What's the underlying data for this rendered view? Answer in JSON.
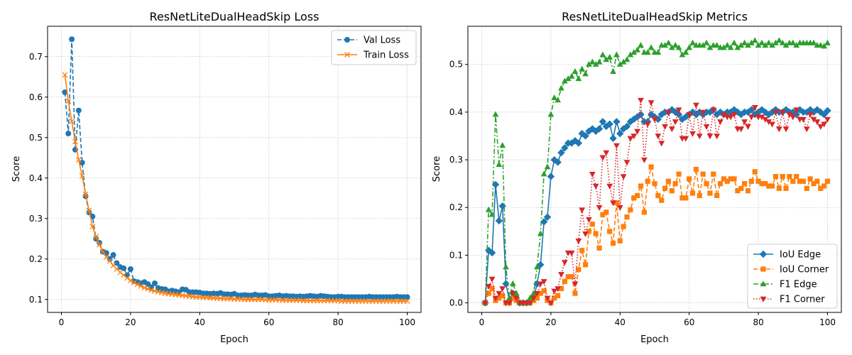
{
  "chart_data": [
    {
      "type": "line",
      "title": "ResNetLiteDualHeadSkip Loss",
      "xlabel": "Epoch",
      "ylabel": "Score",
      "xlim": [
        -4,
        104
      ],
      "ylim": [
        0.068,
        0.775
      ],
      "xticks": [
        0,
        20,
        40,
        60,
        80,
        100
      ],
      "yticks": [
        0.1,
        0.2,
        0.3,
        0.4,
        0.5,
        0.6,
        0.7
      ],
      "grid": true,
      "legend": "top-right",
      "x": [
        1,
        2,
        3,
        4,
        5,
        6,
        7,
        8,
        9,
        10,
        11,
        12,
        13,
        14,
        15,
        16,
        17,
        18,
        19,
        20,
        21,
        22,
        23,
        24,
        25,
        26,
        27,
        28,
        29,
        30,
        31,
        32,
        33,
        34,
        35,
        36,
        37,
        38,
        39,
        40,
        41,
        42,
        43,
        44,
        45,
        46,
        47,
        48,
        49,
        50,
        51,
        52,
        53,
        54,
        55,
        56,
        57,
        58,
        59,
        60,
        61,
        62,
        63,
        64,
        65,
        66,
        67,
        68,
        69,
        70,
        71,
        72,
        73,
        74,
        75,
        76,
        77,
        78,
        79,
        80,
        81,
        82,
        83,
        84,
        85,
        86,
        87,
        88,
        89,
        90,
        91,
        92,
        93,
        94,
        95,
        96,
        97,
        98,
        99,
        100
      ],
      "series": [
        {
          "name": "Val Loss",
          "color": "#1f77b4",
          "linestyle": "dashed",
          "marker": "circle",
          "values": [
            0.612,
            0.51,
            0.743,
            0.47,
            0.567,
            0.438,
            0.355,
            0.315,
            0.305,
            0.25,
            0.24,
            0.218,
            0.215,
            0.2,
            0.21,
            0.19,
            0.18,
            0.177,
            0.16,
            0.175,
            0.145,
            0.143,
            0.14,
            0.143,
            0.138,
            0.13,
            0.14,
            0.128,
            0.126,
            0.125,
            0.12,
            0.122,
            0.12,
            0.118,
            0.125,
            0.124,
            0.118,
            0.118,
            0.118,
            0.117,
            0.115,
            0.115,
            0.114,
            0.115,
            0.114,
            0.116,
            0.113,
            0.113,
            0.112,
            0.114,
            0.11,
            0.11,
            0.111,
            0.11,
            0.11,
            0.112,
            0.11,
            0.11,
            0.111,
            0.108,
            0.108,
            0.109,
            0.11,
            0.108,
            0.109,
            0.108,
            0.108,
            0.107,
            0.108,
            0.107,
            0.108,
            0.109,
            0.108,
            0.107,
            0.109,
            0.108,
            0.107,
            0.106,
            0.106,
            0.107,
            0.107,
            0.106,
            0.106,
            0.106,
            0.106,
            0.106,
            0.106,
            0.106,
            0.107,
            0.106,
            0.106,
            0.106,
            0.106,
            0.106,
            0.106,
            0.106,
            0.107,
            0.106,
            0.106,
            0.106
          ]
        },
        {
          "name": "Train Loss",
          "color": "#ff7f0e",
          "linestyle": "solid",
          "marker": "x",
          "values": [
            0.655,
            0.59,
            0.54,
            0.49,
            0.445,
            0.405,
            0.36,
            0.32,
            0.28,
            0.255,
            0.235,
            0.218,
            0.205,
            0.195,
            0.184,
            0.175,
            0.167,
            0.16,
            0.153,
            0.147,
            0.142,
            0.137,
            0.133,
            0.129,
            0.126,
            0.123,
            0.121,
            0.119,
            0.117,
            0.115,
            0.114,
            0.113,
            0.112,
            0.111,
            0.11,
            0.109,
            0.108,
            0.107,
            0.106,
            0.106,
            0.105,
            0.105,
            0.104,
            0.104,
            0.103,
            0.103,
            0.102,
            0.102,
            0.102,
            0.101,
            0.101,
            0.101,
            0.1,
            0.1,
            0.1,
            0.1,
            0.1,
            0.1,
            0.099,
            0.099,
            0.099,
            0.099,
            0.099,
            0.098,
            0.098,
            0.098,
            0.098,
            0.098,
            0.098,
            0.097,
            0.097,
            0.097,
            0.097,
            0.097,
            0.097,
            0.097,
            0.097,
            0.097,
            0.097,
            0.097,
            0.096,
            0.096,
            0.096,
            0.096,
            0.096,
            0.096,
            0.096,
            0.096,
            0.096,
            0.096,
            0.096,
            0.096,
            0.096,
            0.096,
            0.096,
            0.096,
            0.096,
            0.096,
            0.096,
            0.096
          ]
        }
      ]
    },
    {
      "type": "line",
      "title": "ResNetLiteDualHeadSkip Metrics",
      "xlabel": "Epoch",
      "ylabel": "Score",
      "xlim": [
        -4,
        104
      ],
      "ylim": [
        -0.02,
        0.58
      ],
      "xticks": [
        0,
        20,
        40,
        60,
        80,
        100
      ],
      "yticks": [
        0.0,
        0.1,
        0.2,
        0.3,
        0.4,
        0.5
      ],
      "grid": true,
      "legend": "bottom-right",
      "x": [
        1,
        2,
        3,
        4,
        5,
        6,
        7,
        8,
        9,
        10,
        11,
        12,
        13,
        14,
        15,
        16,
        17,
        18,
        19,
        20,
        21,
        22,
        23,
        24,
        25,
        26,
        27,
        28,
        29,
        30,
        31,
        32,
        33,
        34,
        35,
        36,
        37,
        38,
        39,
        40,
        41,
        42,
        43,
        44,
        45,
        46,
        47,
        48,
        49,
        50,
        51,
        52,
        53,
        54,
        55,
        56,
        57,
        58,
        59,
        60,
        61,
        62,
        63,
        64,
        65,
        66,
        67,
        68,
        69,
        70,
        71,
        72,
        73,
        74,
        75,
        76,
        77,
        78,
        79,
        80,
        81,
        82,
        83,
        84,
        85,
        86,
        87,
        88,
        89,
        90,
        91,
        92,
        93,
        94,
        95,
        96,
        97,
        98,
        99,
        100
      ],
      "series": [
        {
          "name": "IoU Edge",
          "color": "#1f77b4",
          "linestyle": "solid",
          "marker": "diamond",
          "values": [
            0.0,
            0.11,
            0.105,
            0.248,
            0.172,
            0.203,
            0.04,
            0.005,
            0.02,
            0.01,
            0.0,
            0.0,
            0.0,
            0.005,
            0.01,
            0.04,
            0.08,
            0.17,
            0.18,
            0.265,
            0.3,
            0.295,
            0.315,
            0.325,
            0.335,
            0.335,
            0.34,
            0.335,
            0.355,
            0.35,
            0.36,
            0.365,
            0.36,
            0.365,
            0.38,
            0.37,
            0.375,
            0.345,
            0.38,
            0.355,
            0.365,
            0.37,
            0.38,
            0.385,
            0.39,
            0.395,
            0.38,
            0.38,
            0.395,
            0.39,
            0.385,
            0.395,
            0.4,
            0.4,
            0.405,
            0.4,
            0.395,
            0.385,
            0.39,
            0.395,
            0.4,
            0.395,
            0.4,
            0.395,
            0.4,
            0.4,
            0.405,
            0.395,
            0.4,
            0.395,
            0.4,
            0.4,
            0.405,
            0.4,
            0.395,
            0.4,
            0.4,
            0.405,
            0.395,
            0.4,
            0.405,
            0.4,
            0.395,
            0.4,
            0.405,
            0.4,
            0.4,
            0.405,
            0.4,
            0.4,
            0.395,
            0.405,
            0.4,
            0.4,
            0.405,
            0.4,
            0.405,
            0.4,
            0.395,
            0.403
          ]
        },
        {
          "name": "IoU Corner",
          "color": "#ff7f0e",
          "linestyle": "dashed",
          "marker": "square",
          "values": [
            0.0,
            0.02,
            0.03,
            0.005,
            0.01,
            0.015,
            0.0,
            0.0,
            0.01,
            0.005,
            0.0,
            0.0,
            0.0,
            0.0,
            0.005,
            0.01,
            0.02,
            0.025,
            0.005,
            0.0,
            0.01,
            0.015,
            0.03,
            0.045,
            0.055,
            0.055,
            0.02,
            0.07,
            0.11,
            0.08,
            0.15,
            0.165,
            0.145,
            0.115,
            0.185,
            0.19,
            0.15,
            0.125,
            0.21,
            0.13,
            0.16,
            0.18,
            0.195,
            0.22,
            0.225,
            0.245,
            0.19,
            0.255,
            0.285,
            0.25,
            0.225,
            0.215,
            0.24,
            0.255,
            0.235,
            0.25,
            0.27,
            0.22,
            0.22,
            0.26,
            0.23,
            0.28,
            0.225,
            0.27,
            0.25,
            0.23,
            0.27,
            0.225,
            0.25,
            0.26,
            0.255,
            0.26,
            0.26,
            0.235,
            0.24,
            0.25,
            0.235,
            0.255,
            0.275,
            0.255,
            0.25,
            0.25,
            0.245,
            0.245,
            0.265,
            0.24,
            0.265,
            0.24,
            0.265,
            0.255,
            0.265,
            0.255,
            0.255,
            0.24,
            0.26,
            0.25,
            0.255,
            0.24,
            0.245,
            0.255
          ]
        },
        {
          "name": "F1 Edge",
          "color": "#2ca02c",
          "linestyle": "dashdot",
          "marker": "triangle-up",
          "values": [
            0.0,
            0.195,
            0.185,
            0.395,
            0.29,
            0.33,
            0.075,
            0.01,
            0.04,
            0.02,
            0.0,
            0.0,
            0.0,
            0.01,
            0.02,
            0.075,
            0.145,
            0.27,
            0.285,
            0.395,
            0.43,
            0.425,
            0.45,
            0.465,
            0.47,
            0.475,
            0.485,
            0.47,
            0.49,
            0.48,
            0.5,
            0.505,
            0.5,
            0.505,
            0.52,
            0.51,
            0.515,
            0.485,
            0.52,
            0.5,
            0.505,
            0.51,
            0.52,
            0.525,
            0.53,
            0.54,
            0.525,
            0.525,
            0.535,
            0.525,
            0.525,
            0.54,
            0.54,
            0.545,
            0.535,
            0.54,
            0.535,
            0.52,
            0.525,
            0.535,
            0.545,
            0.54,
            0.54,
            0.54,
            0.545,
            0.535,
            0.54,
            0.54,
            0.535,
            0.535,
            0.54,
            0.535,
            0.545,
            0.535,
            0.54,
            0.545,
            0.54,
            0.545,
            0.55,
            0.54,
            0.545,
            0.54,
            0.545,
            0.54,
            0.545,
            0.55,
            0.545,
            0.54,
            0.545,
            0.545,
            0.54,
            0.545,
            0.545,
            0.545,
            0.545,
            0.545,
            0.54,
            0.54,
            0.538,
            0.545
          ]
        },
        {
          "name": "F1 Corner",
          "color": "#d62728",
          "linestyle": "dotted",
          "marker": "triangle-down",
          "values": [
            0.0,
            0.035,
            0.05,
            0.01,
            0.02,
            0.03,
            0.0,
            0.0,
            0.02,
            0.01,
            0.0,
            0.0,
            0.0,
            0.0,
            0.01,
            0.02,
            0.04,
            0.045,
            0.01,
            0.0,
            0.025,
            0.03,
            0.06,
            0.085,
            0.105,
            0.105,
            0.04,
            0.13,
            0.195,
            0.145,
            0.175,
            0.27,
            0.245,
            0.2,
            0.305,
            0.315,
            0.245,
            0.21,
            0.33,
            0.2,
            0.265,
            0.295,
            0.345,
            0.35,
            0.36,
            0.425,
            0.3,
            0.375,
            0.42,
            0.385,
            0.35,
            0.335,
            0.37,
            0.4,
            0.365,
            0.38,
            0.405,
            0.345,
            0.345,
            0.395,
            0.355,
            0.415,
            0.35,
            0.4,
            0.37,
            0.35,
            0.405,
            0.35,
            0.38,
            0.395,
            0.39,
            0.39,
            0.395,
            0.365,
            0.365,
            0.38,
            0.37,
            0.39,
            0.41,
            0.39,
            0.39,
            0.385,
            0.38,
            0.375,
            0.4,
            0.365,
            0.4,
            0.365,
            0.395,
            0.39,
            0.405,
            0.385,
            0.385,
            0.365,
            0.395,
            0.385,
            0.38,
            0.37,
            0.375,
            0.385
          ]
        }
      ]
    }
  ]
}
